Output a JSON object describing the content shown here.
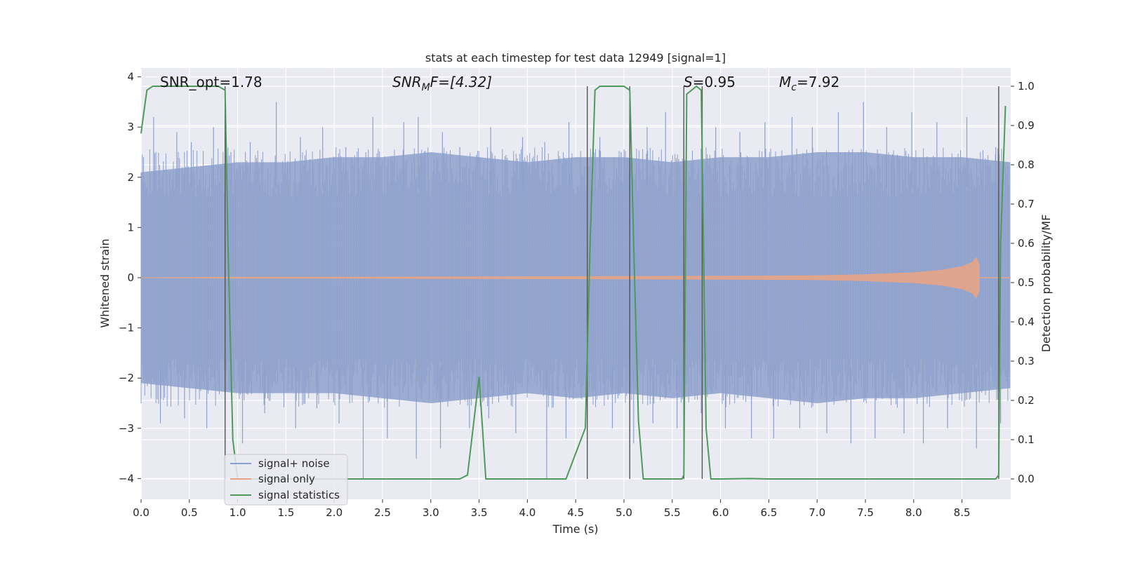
{
  "chart_data": {
    "type": "line",
    "title": "stats at each timestep for test data 12949 [signal=1]",
    "xlabel": "Time (s)",
    "ylabel": "Whitened strain",
    "y2label": "Detection probability/MF",
    "xlim": [
      0.0,
      9.0
    ],
    "ylim": [
      -4.4,
      4.2
    ],
    "y2lim": [
      -0.05,
      1.03
    ],
    "xticks": [
      "0.0",
      "0.5",
      "1.0",
      "1.5",
      "2.0",
      "2.5",
      "3.0",
      "3.5",
      "4.0",
      "4.5",
      "5.0",
      "5.5",
      "6.0",
      "6.5",
      "7.0",
      "7.5",
      "8.0",
      "8.5"
    ],
    "yticks": [
      "4",
      "3",
      "2",
      "1",
      "0",
      "−1",
      "−2",
      "−3",
      "−4"
    ],
    "y2ticks": [
      "1.0",
      "0.9",
      "0.8",
      "0.7",
      "0.6",
      "0.5",
      "0.4",
      "0.3",
      "0.2",
      "0.1",
      "0.0"
    ],
    "grid": true,
    "legend_position": "lower-left",
    "annotations": {
      "snr_opt": "SNR_opt=1.78",
      "snr_mf_main": "SNR",
      "snr_mf_sub": "M",
      "snr_mf_rest": "F=[4.32]",
      "s_main": "S",
      "s_rest": "=0.95",
      "mc_main": "M",
      "mc_sub": "c",
      "mc_rest": "=7.92"
    },
    "series": [
      {
        "name": "signal+ noise",
        "color": "#8da0cb",
        "envelope_x": [
          0.0,
          0.5,
          1.0,
          1.5,
          2.0,
          2.5,
          3.0,
          3.5,
          4.0,
          4.5,
          5.0,
          5.5,
          6.0,
          6.5,
          7.0,
          7.5,
          8.0,
          8.5,
          9.0
        ],
        "envelope_high": [
          2.1,
          2.2,
          2.3,
          2.3,
          2.4,
          2.4,
          2.5,
          2.4,
          2.3,
          2.4,
          2.4,
          2.3,
          2.4,
          2.4,
          2.5,
          2.5,
          2.4,
          2.4,
          2.3
        ],
        "envelope_low": [
          -2.1,
          -2.2,
          -2.3,
          -2.3,
          -2.3,
          -2.4,
          -2.5,
          -2.4,
          -2.3,
          -2.4,
          -2.3,
          -2.4,
          -2.3,
          -2.4,
          -2.5,
          -2.4,
          -2.4,
          -2.3,
          -2.2
        ],
        "peaks_x": [
          0.13,
          0.37,
          0.52,
          0.75,
          0.93,
          1.13,
          1.4,
          1.65,
          1.88,
          2.12,
          2.4,
          2.72,
          2.87,
          3.12,
          3.3,
          3.62,
          3.95,
          4.18,
          4.43,
          4.75,
          4.97,
          5.24,
          5.43,
          5.62,
          5.95,
          6.2,
          6.46,
          6.74,
          6.95,
          7.22,
          7.48,
          7.72,
          7.98,
          8.24,
          8.55,
          8.85
        ],
        "peaks_y": [
          3.2,
          2.9,
          2.7,
          3.0,
          2.5,
          2.7,
          3.5,
          2.8,
          3.0,
          2.6,
          3.2,
          3.1,
          3.2,
          2.9,
          2.6,
          3.0,
          2.8,
          2.7,
          3.1,
          2.8,
          2.5,
          3.0,
          3.3,
          3.1,
          3.0,
          2.9,
          3.1,
          3.2,
          3.0,
          3.3,
          3.5,
          3.0,
          3.3,
          3.1,
          3.2,
          2.6
        ],
        "troughs_x": [
          0.2,
          0.45,
          0.68,
          1.05,
          1.28,
          1.6,
          1.82,
          2.05,
          2.3,
          2.55,
          2.85,
          3.1,
          3.4,
          3.6,
          3.88,
          4.2,
          4.4,
          4.62,
          4.88,
          5.1,
          5.3,
          5.55,
          5.8,
          6.05,
          6.32,
          6.55,
          6.82,
          7.1,
          7.35,
          7.6,
          7.9,
          8.1,
          8.35,
          8.65,
          8.9
        ],
        "troughs_y": [
          -2.9,
          -2.8,
          -3.0,
          -3.3,
          -2.7,
          -3.0,
          -2.6,
          -2.9,
          -4.0,
          -3.2,
          -3.6,
          -3.4,
          -3.0,
          -2.8,
          -3.1,
          -4.0,
          -3.2,
          -2.7,
          -3.0,
          -3.3,
          -2.9,
          -3.0,
          -2.7,
          -3.0,
          -3.2,
          -3.2,
          -3.0,
          -3.1,
          -3.3,
          -3.2,
          -3.1,
          -3.3,
          -3.0,
          -3.4,
          -2.9
        ]
      },
      {
        "name": "signal only",
        "color": "#e5a487",
        "x": [
          0.0,
          1.0,
          2.0,
          3.0,
          4.0,
          5.0,
          6.0,
          7.0,
          7.5,
          8.0,
          8.3,
          8.5,
          8.6,
          8.65,
          8.68
        ],
        "amplitude": [
          0.0,
          0.01,
          0.01,
          0.015,
          0.02,
          0.025,
          0.03,
          0.04,
          0.06,
          0.1,
          0.15,
          0.22,
          0.3,
          0.4,
          0.25
        ]
      },
      {
        "name": "signal statistics",
        "color": "#4e9a5a",
        "x": [
          0.0,
          0.01,
          0.06,
          0.12,
          0.2,
          0.4,
          0.6,
          0.8,
          0.87,
          0.9,
          0.95,
          1.0,
          1.1,
          1.5,
          2.0,
          2.5,
          3.0,
          3.3,
          3.38,
          3.5,
          3.57,
          3.6,
          4.0,
          4.4,
          4.6,
          4.65,
          4.7,
          4.75,
          4.9,
          5.0,
          5.06,
          5.1,
          5.15,
          5.2,
          5.4,
          5.6,
          5.62,
          5.65,
          5.7,
          5.75,
          5.8,
          5.85,
          5.9,
          5.95,
          6.0,
          6.3,
          6.5,
          7.0,
          8.0,
          8.85,
          8.88,
          8.9,
          8.95
        ],
        "y": [
          0.88,
          0.9,
          0.99,
          1.0,
          1.0,
          1.0,
          1.0,
          1.0,
          0.99,
          0.6,
          0.1,
          0.0,
          0.0,
          0.0,
          0.0,
          0.0,
          0.0,
          0.0,
          0.01,
          0.26,
          0.0,
          0.0,
          0.0,
          0.0,
          0.13,
          0.6,
          0.99,
          1.0,
          1.0,
          1.0,
          0.99,
          0.6,
          0.15,
          0.0,
          0.0,
          0.0,
          0.01,
          0.98,
          0.99,
          1.0,
          0.99,
          0.13,
          0.0,
          0.0,
          0.0,
          0.001,
          0.0,
          0.0,
          0.0,
          0.0,
          0.01,
          0.6,
          0.95
        ]
      }
    ],
    "vertical_markers": [
      0.87,
      4.62,
      5.06,
      5.62,
      5.81,
      8.88
    ]
  }
}
